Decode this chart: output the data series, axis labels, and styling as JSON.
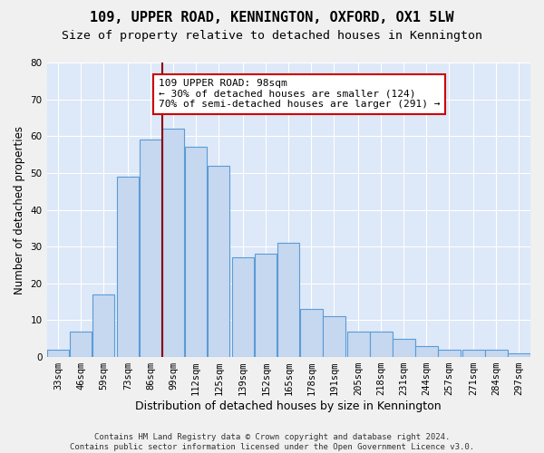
{
  "title": "109, UPPER ROAD, KENNINGTON, OXFORD, OX1 5LW",
  "subtitle": "Size of property relative to detached houses in Kennington",
  "xlabel": "Distribution of detached houses by size in Kennington",
  "ylabel": "Number of detached properties",
  "bar_labels": [
    "33sqm",
    "46sqm",
    "59sqm",
    "73sqm",
    "86sqm",
    "99sqm",
    "112sqm",
    "125sqm",
    "139sqm",
    "152sqm",
    "165sqm",
    "178sqm",
    "191sqm",
    "205sqm",
    "218sqm",
    "231sqm",
    "244sqm",
    "257sqm",
    "271sqm",
    "284sqm",
    "297sqm"
  ],
  "counts": [
    2,
    7,
    17,
    49,
    59,
    62,
    57,
    52,
    27,
    28,
    31,
    13,
    11,
    7,
    7,
    5,
    3,
    2,
    2,
    2,
    1
  ],
  "bin_edges": [
    33,
    46,
    59,
    73,
    86,
    99,
    112,
    125,
    139,
    152,
    165,
    178,
    191,
    205,
    218,
    231,
    244,
    257,
    271,
    284,
    297,
    310
  ],
  "bar_color": "#c5d8f0",
  "bar_edge_color": "#5b9bd5",
  "property_line_x": 99,
  "ylim": [
    0,
    80
  ],
  "yticks": [
    0,
    10,
    20,
    30,
    40,
    50,
    60,
    70,
    80
  ],
  "annotation_text": "109 UPPER ROAD: 98sqm\n← 30% of detached houses are smaller (124)\n70% of semi-detached houses are larger (291) →",
  "annotation_box_color": "#ffffff",
  "annotation_box_edge": "#cc0000",
  "property_line_color": "#8b0000",
  "bg_color": "#dde8f8",
  "grid_color": "#ffffff",
  "footer": "Contains HM Land Registry data © Crown copyright and database right 2024.\nContains public sector information licensed under the Open Government Licence v3.0.",
  "title_fontsize": 11,
  "subtitle_fontsize": 9.5,
  "xlabel_fontsize": 9,
  "ylabel_fontsize": 8.5,
  "tick_fontsize": 7.5,
  "annotation_fontsize": 8,
  "footer_fontsize": 6.5
}
